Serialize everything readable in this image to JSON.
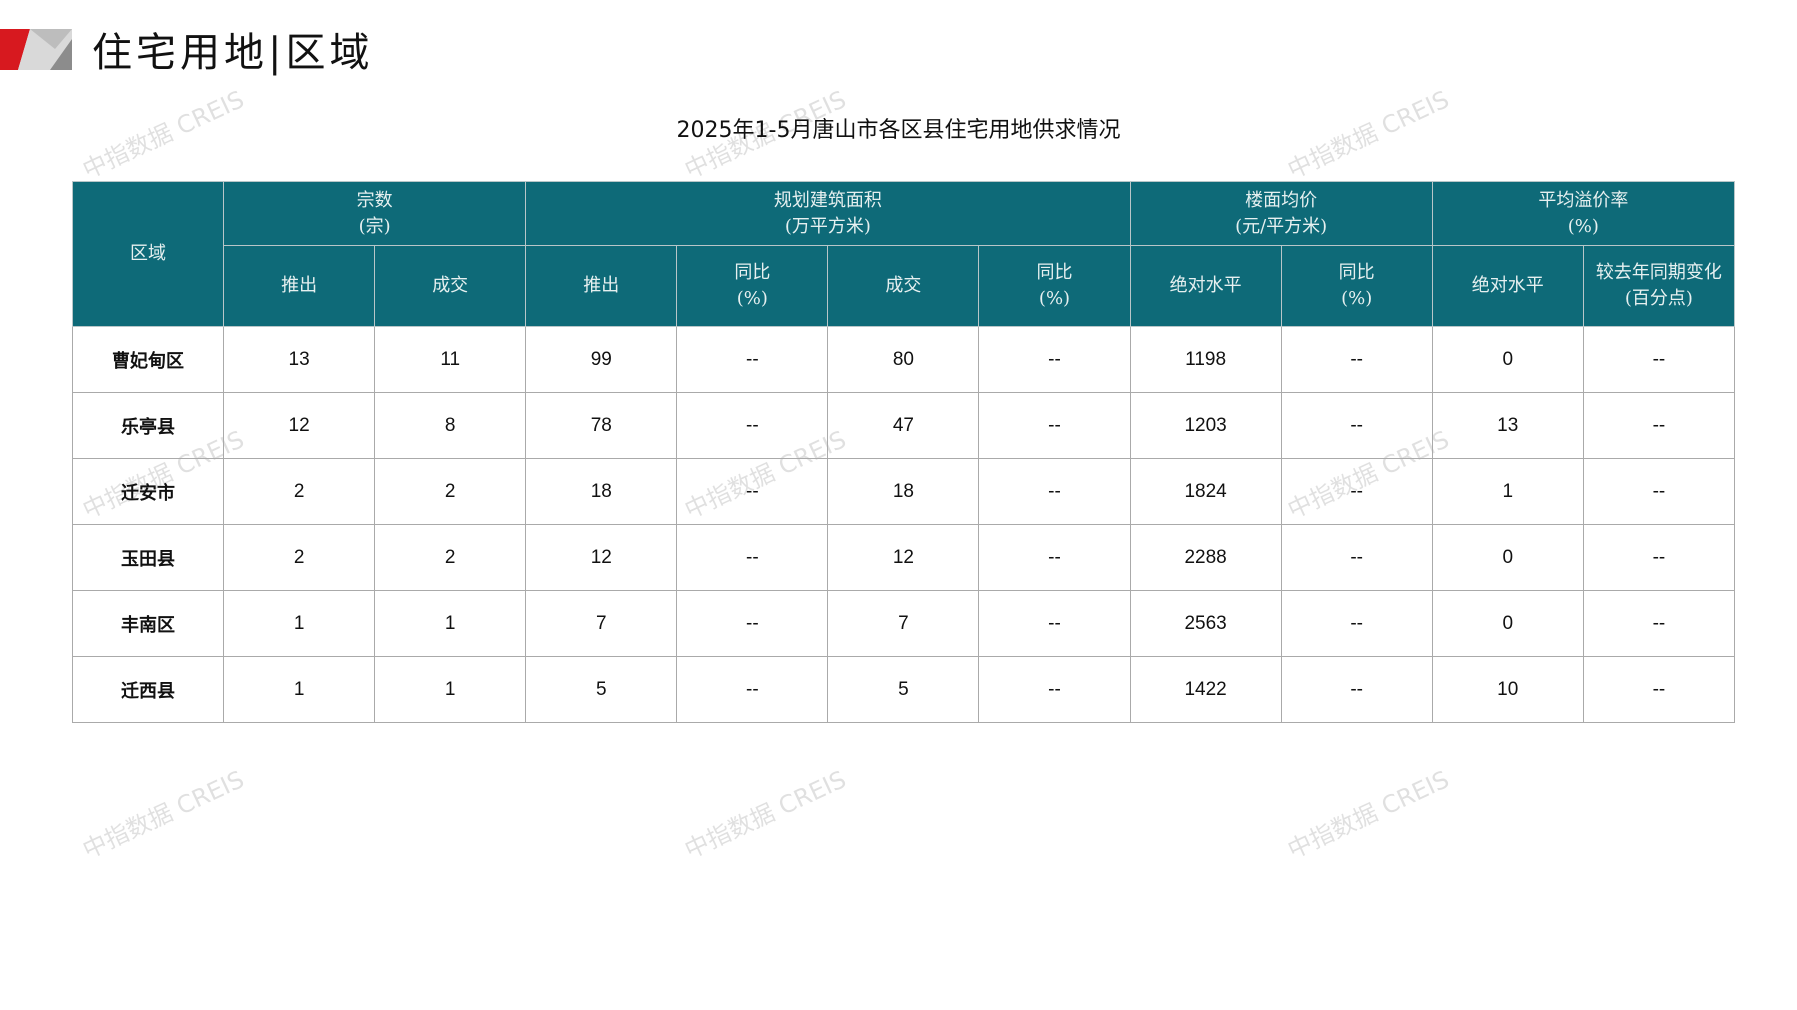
{
  "header": {
    "title": "住宅用地|区域"
  },
  "table_title": "2025年1-5月唐山市各区县住宅用地供求情况",
  "watermark": "中指数据 CREIS",
  "colors": {
    "header_bg": "#0e6a78",
    "accent_red": "#d7191f"
  },
  "columns": {
    "region": "区域",
    "count": "宗数\n(宗)",
    "area": "规划建筑面积\n(万平方米)",
    "price": "楼面均价\n(元/平方米)",
    "premium": "平均溢价率\n(%)",
    "sub": [
      "推出",
      "成交",
      "推出",
      "同比\n(%)",
      "成交",
      "同比\n(%)",
      "绝对水平",
      "同比\n(%)",
      "绝对水平",
      "较去年同期变化\n(百分点)"
    ]
  },
  "rows": [
    [
      "曹妃甸区",
      "13",
      "11",
      "99",
      "--",
      "80",
      "--",
      "1198",
      "--",
      "0",
      "--"
    ],
    [
      "乐亭县",
      "12",
      "8",
      "78",
      "--",
      "47",
      "--",
      "1203",
      "--",
      "13",
      "--"
    ],
    [
      "迁安市",
      "2",
      "2",
      "18",
      "--",
      "18",
      "--",
      "1824",
      "--",
      "1",
      "--"
    ],
    [
      "玉田县",
      "2",
      "2",
      "12",
      "--",
      "12",
      "--",
      "2288",
      "--",
      "0",
      "--"
    ],
    [
      "丰南区",
      "1",
      "1",
      "7",
      "--",
      "7",
      "--",
      "2563",
      "--",
      "0",
      "--"
    ],
    [
      "迁西县",
      "1",
      "1",
      "5",
      "--",
      "5",
      "--",
      "1422",
      "--",
      "10",
      "--"
    ]
  ]
}
